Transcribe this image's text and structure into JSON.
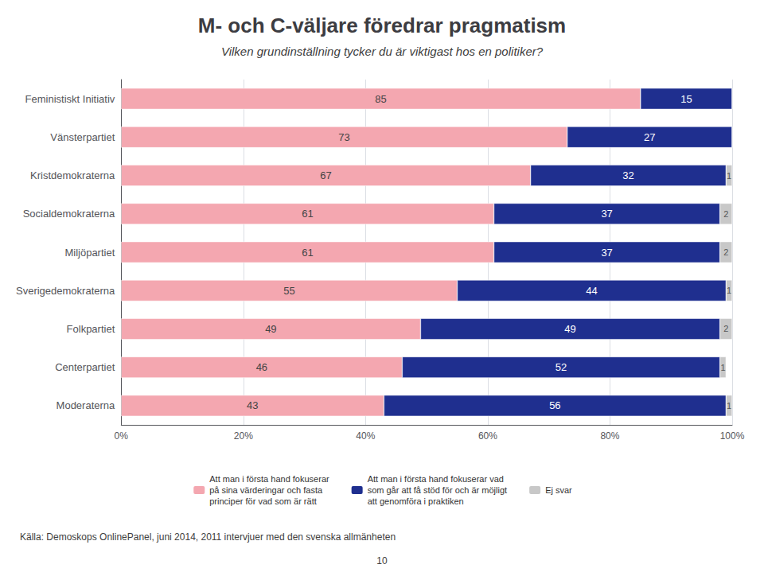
{
  "chart_data": {
    "type": "bar",
    "orientation": "horizontal",
    "stacked": true,
    "title": "M- och C-väljare föredrar pragmatism",
    "subtitle": "Vilken grundinställning tycker du är viktigast hos en politiker?",
    "categories": [
      "Feministiskt Initiativ",
      "Vänsterpartiet",
      "Kristdemokraterna",
      "Socialdemokraterna",
      "Miljöpartiet",
      "Sverigedemokraterna",
      "Folkpartiet",
      "Centerpartiet",
      "Moderaterna"
    ],
    "series": [
      {
        "name": "Att man i första hand fokuserar\npå sina värderingar och fasta\nprinciper för vad som är rätt",
        "color": "#F4A7B0",
        "values": [
          85,
          73,
          67,
          61,
          61,
          55,
          49,
          46,
          43
        ]
      },
      {
        "name": "Att man i första hand fokuserar vad\nsom går att få stöd för och är möjligt\natt genomföra i praktiken",
        "color": "#1F2F8F",
        "values": [
          15,
          27,
          32,
          37,
          37,
          44,
          49,
          52,
          56
        ]
      },
      {
        "name": "Ej svar",
        "color": "#C8C8C8",
        "values": [
          0,
          0,
          1,
          2,
          2,
          1,
          2,
          1,
          1
        ]
      }
    ],
    "xlim": [
      0,
      100
    ],
    "xticks": [
      {
        "value": 0,
        "label": "0%"
      },
      {
        "value": 20,
        "label": "20%"
      },
      {
        "value": 40,
        "label": "40%"
      },
      {
        "value": 60,
        "label": "60%"
      },
      {
        "value": 80,
        "label": "80%"
      },
      {
        "value": 100,
        "label": "100%"
      }
    ],
    "grid": true,
    "data_labels": true,
    "legend": "bottom",
    "annotations": [
      "Källa: Demoskops OnlinePanel, juni 2014, 2011 intervjuer med den svenska allmänheten",
      "10"
    ]
  }
}
